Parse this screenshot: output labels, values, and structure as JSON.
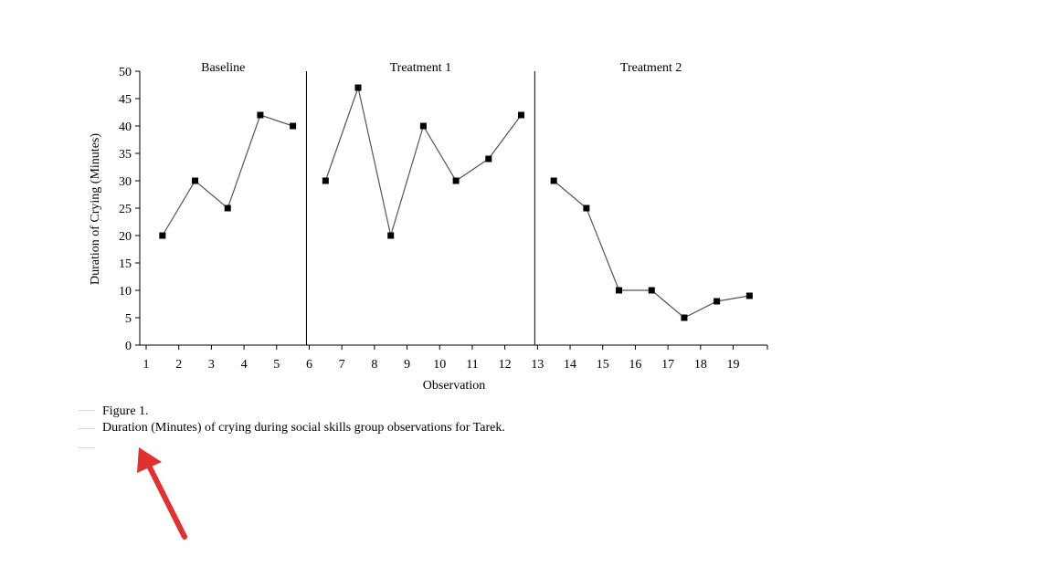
{
  "chart_data": {
    "type": "line",
    "ylabel": "Duration of Crying (Minutes)",
    "xlabel": "Observation",
    "ylim": [
      0,
      50
    ],
    "y_ticks": [
      0,
      5,
      10,
      15,
      20,
      25,
      30,
      35,
      40,
      45,
      50
    ],
    "x_ticks": [
      1,
      2,
      3,
      4,
      5,
      6,
      7,
      8,
      9,
      10,
      11,
      12,
      13,
      14,
      15,
      16,
      17,
      18,
      19
    ],
    "xlim": [
      1,
      20
    ],
    "phases": [
      {
        "name": "Baseline",
        "x": [
          1.5,
          2.5,
          3.5,
          4.5,
          5.5
        ],
        "values": [
          20,
          30,
          25,
          42,
          40
        ]
      },
      {
        "name": "Treatment 1",
        "x": [
          6.5,
          7.5,
          8.5,
          9.5,
          10.5,
          11.5,
          12.5
        ],
        "values": [
          30,
          47,
          20,
          40,
          30,
          34,
          42
        ]
      },
      {
        "name": "Treatment 2",
        "x": [
          13.5,
          14.5,
          15.5,
          16.5,
          17.5,
          18.5,
          19.5
        ],
        "values": [
          30,
          25,
          10,
          10,
          5,
          8,
          9
        ]
      }
    ],
    "phase_dividers": [
      6,
      13
    ]
  },
  "caption": {
    "figure_number": "Figure 1.",
    "description": "Duration (Minutes) of crying during social skills group observations for Tarek."
  }
}
